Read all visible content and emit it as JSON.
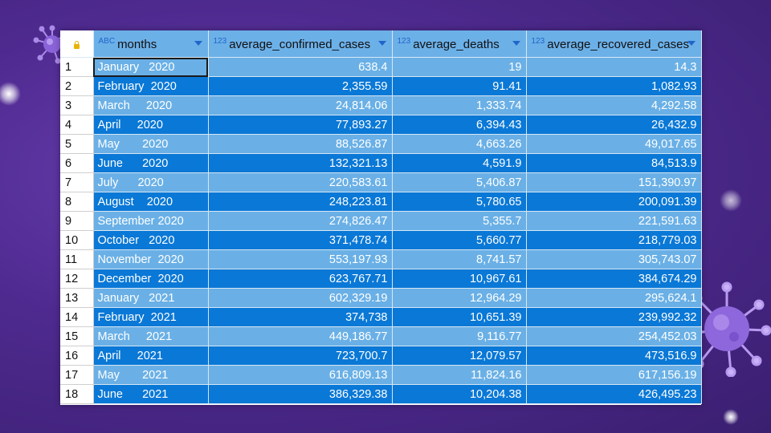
{
  "grid": {
    "columns": [
      {
        "name": "months",
        "type_label": "ABC"
      },
      {
        "name": "average_confirmed_cases",
        "type_label": "123"
      },
      {
        "name": "average_deaths",
        "type_label": "123"
      },
      {
        "name": "average_recovered_cases",
        "type_label": "123"
      }
    ],
    "rows": [
      {
        "n": "1",
        "month": "January   2020",
        "confirmed": "638.4",
        "deaths": "19",
        "recovered": "14.3"
      },
      {
        "n": "2",
        "month": "February  2020",
        "confirmed": "2,355.59",
        "deaths": "91.41",
        "recovered": "1,082.93"
      },
      {
        "n": "3",
        "month": "March     2020",
        "confirmed": "24,814.06",
        "deaths": "1,333.74",
        "recovered": "4,292.58"
      },
      {
        "n": "4",
        "month": "April     2020",
        "confirmed": "77,893.27",
        "deaths": "6,394.43",
        "recovered": "26,432.9"
      },
      {
        "n": "5",
        "month": "May       2020",
        "confirmed": "88,526.87",
        "deaths": "4,663.26",
        "recovered": "49,017.65"
      },
      {
        "n": "6",
        "month": "June      2020",
        "confirmed": "132,321.13",
        "deaths": "4,591.9",
        "recovered": "84,513.9"
      },
      {
        "n": "7",
        "month": "July      2020",
        "confirmed": "220,583.61",
        "deaths": "5,406.87",
        "recovered": "151,390.97"
      },
      {
        "n": "8",
        "month": "August    2020",
        "confirmed": "248,223.81",
        "deaths": "5,780.65",
        "recovered": "200,091.39"
      },
      {
        "n": "9",
        "month": "September 2020",
        "confirmed": "274,826.47",
        "deaths": "5,355.7",
        "recovered": "221,591.63"
      },
      {
        "n": "10",
        "month": "October   2020",
        "confirmed": "371,478.74",
        "deaths": "5,660.77",
        "recovered": "218,779.03"
      },
      {
        "n": "11",
        "month": "November  2020",
        "confirmed": "553,197.93",
        "deaths": "8,741.57",
        "recovered": "305,743.07"
      },
      {
        "n": "12",
        "month": "December  2020",
        "confirmed": "623,767.71",
        "deaths": "10,967.61",
        "recovered": "384,674.29"
      },
      {
        "n": "13",
        "month": "January   2021",
        "confirmed": "602,329.19",
        "deaths": "12,964.29",
        "recovered": "295,624.1"
      },
      {
        "n": "14",
        "month": "February  2021",
        "confirmed": "374,738",
        "deaths": "10,651.39",
        "recovered": "239,992.32"
      },
      {
        "n": "15",
        "month": "March     2021",
        "confirmed": "449,186.77",
        "deaths": "9,116.77",
        "recovered": "254,452.03"
      },
      {
        "n": "16",
        "month": "April     2021",
        "confirmed": "723,700.7",
        "deaths": "12,079.57",
        "recovered": "473,516.9"
      },
      {
        "n": "17",
        "month": "May       2021",
        "confirmed": "616,809.13",
        "deaths": "11,824.16",
        "recovered": "617,156.19"
      },
      {
        "n": "18",
        "month": "June      2021",
        "confirmed": "386,329.38",
        "deaths": "10,204.38",
        "recovered": "426,495.23"
      }
    ],
    "selected_row": 0
  },
  "icons": {
    "corner": "lock-icon",
    "sort": "sort-dropdown-icon",
    "decor": "virus-icon"
  },
  "colors": {
    "background": "#4e2a8f",
    "header": "#6cb0e8",
    "row_light": "#6ab0e6",
    "row_dark": "#0a78d6",
    "type_badge": "#1e66c9"
  }
}
